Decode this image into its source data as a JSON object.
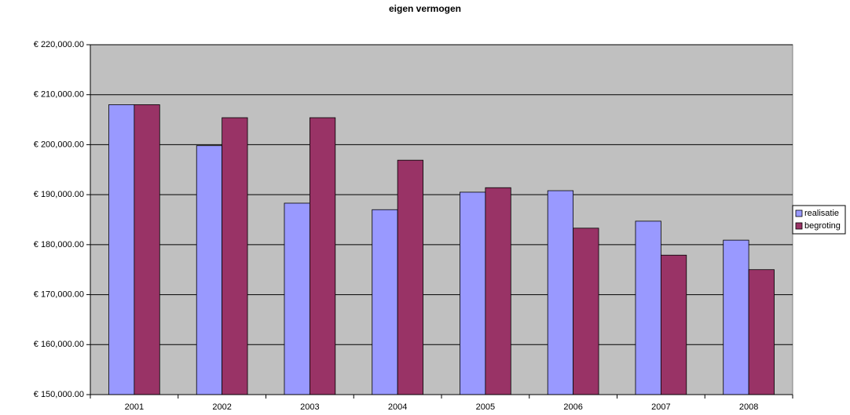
{
  "chart_data": {
    "type": "bar",
    "title": "eigen vermogen",
    "categories": [
      "2001",
      "2002",
      "2003",
      "2004",
      "2005",
      "2006",
      "2007",
      "2008"
    ],
    "series": [
      {
        "name": "realisatie",
        "color": "#9999ff",
        "values": [
          208000,
          199800,
          188300,
          187000,
          190500,
          190800,
          184700,
          180900
        ]
      },
      {
        "name": "begroting",
        "color": "#993366",
        "values": [
          208000,
          205400,
          205400,
          196900,
          191400,
          183300,
          177900,
          175000
        ]
      }
    ],
    "ylim": [
      150000,
      220000
    ],
    "yticks": [
      {
        "value": 150000,
        "label": "€ 150,000.00"
      },
      {
        "value": 160000,
        "label": "€ 160,000.00"
      },
      {
        "value": 170000,
        "label": "€ 170,000.00"
      },
      {
        "value": 180000,
        "label": "€ 180,000.00"
      },
      {
        "value": 190000,
        "label": "€ 190,000.00"
      },
      {
        "value": 200000,
        "label": "€ 200,000.00"
      },
      {
        "value": 210000,
        "label": "€ 210,000.00"
      },
      {
        "value": 220000,
        "label": "€ 220,000.00"
      }
    ],
    "grid": true,
    "legend": "right"
  }
}
